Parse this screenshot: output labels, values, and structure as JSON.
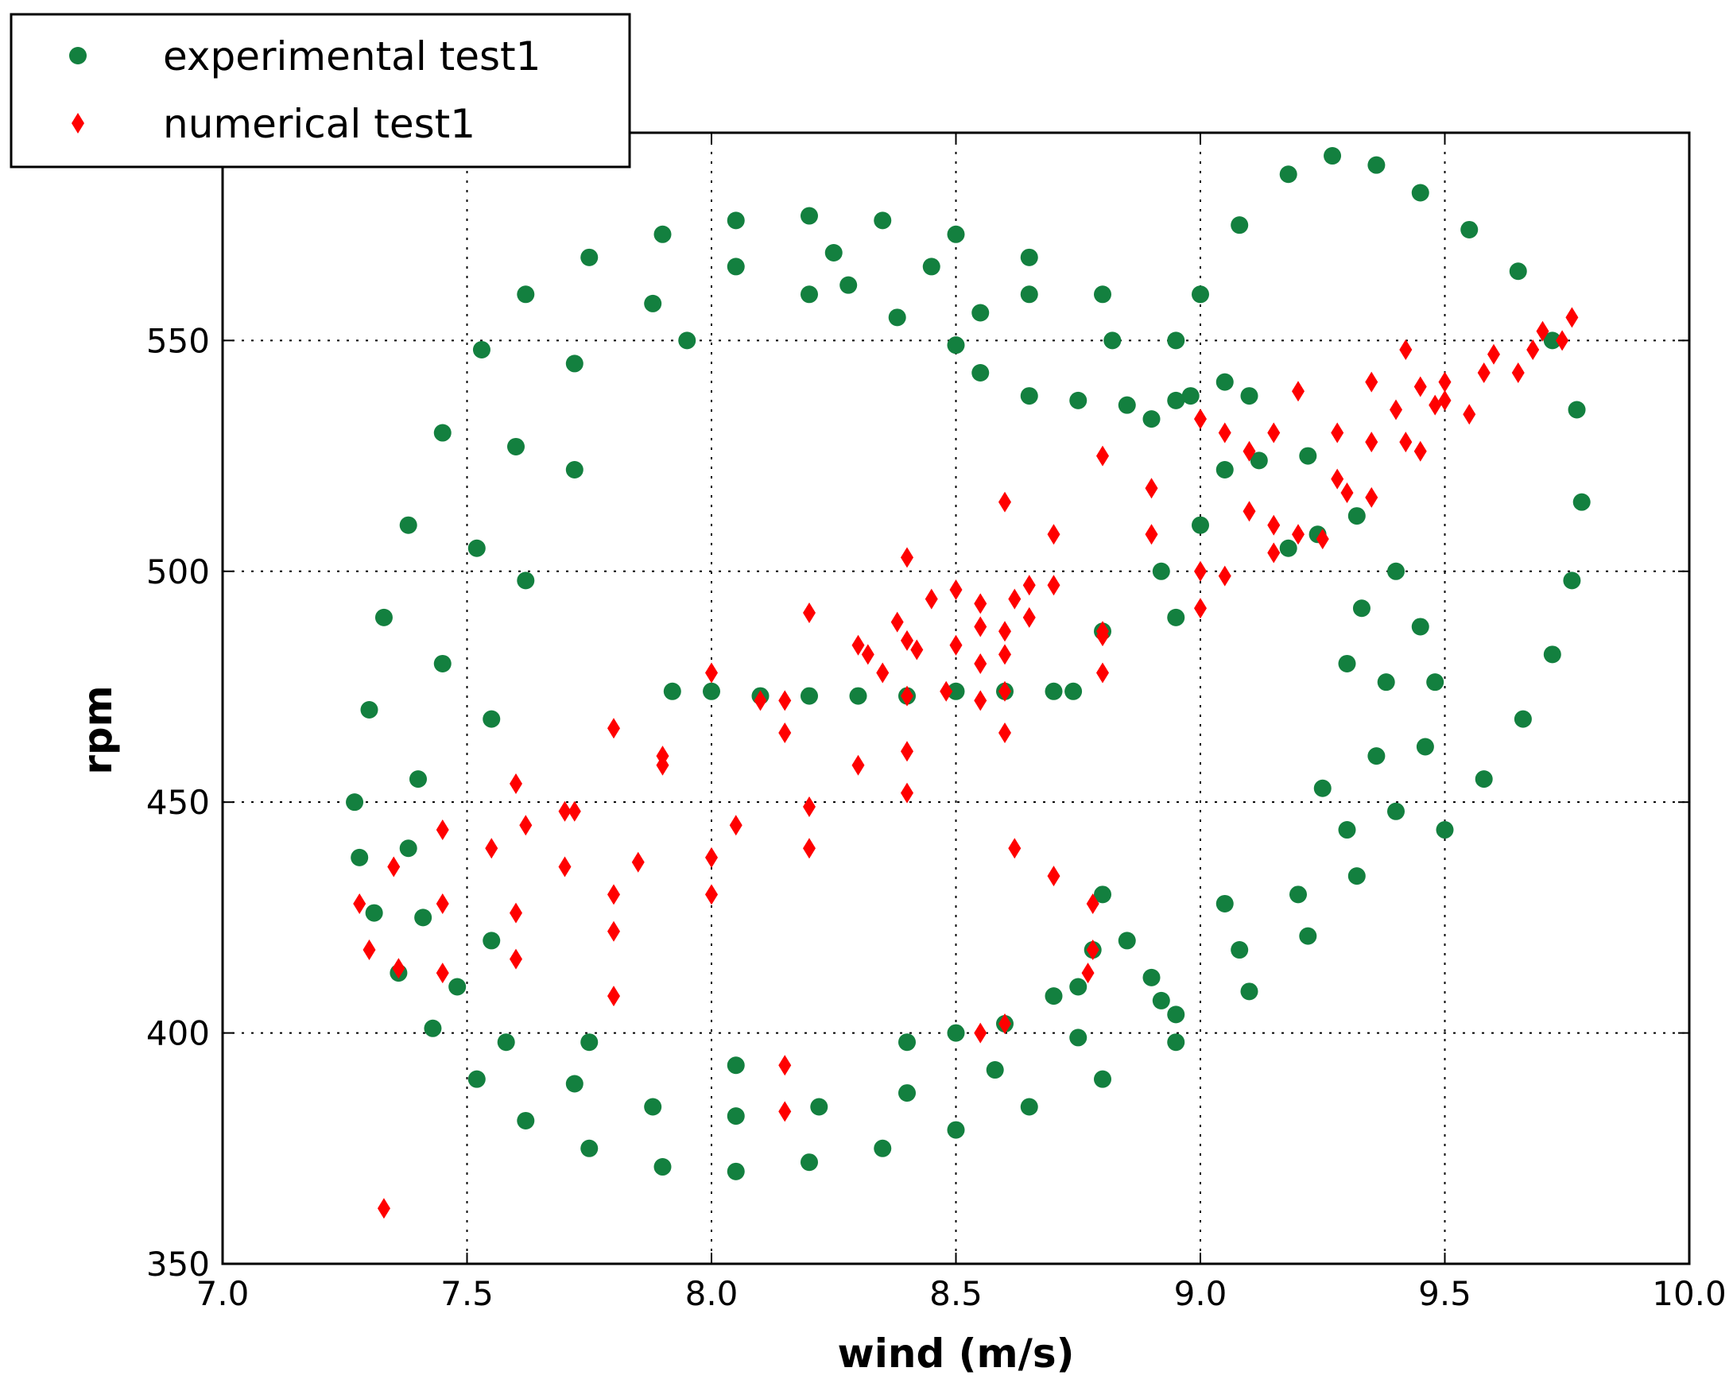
{
  "chart_data": {
    "type": "scatter",
    "title": "",
    "xlabel": "wind (m/s)",
    "ylabel": "rpm",
    "xlim": [
      7.0,
      10.0
    ],
    "ylim": [
      350,
      595
    ],
    "xticks": [
      7.0,
      7.5,
      8.0,
      8.5,
      9.0,
      9.5,
      10.0
    ],
    "xtick_labels": [
      "7.0",
      "7.5",
      "8.0",
      "8.5",
      "9.0",
      "9.5",
      "10.0"
    ],
    "yticks": [
      350,
      400,
      450,
      500,
      550
    ],
    "ytick_labels": [
      "350",
      "400",
      "450",
      "500",
      "550"
    ],
    "grid": true,
    "legend_position": "top-left (outside plot)",
    "series": [
      {
        "name": "experimental test1",
        "color": "#13803f",
        "marker": "circle",
        "description": "Ring of points around an ellipse centred near (8.4, 472) spanning x 7.25–9.45 and rpm 370–577, plus a near-horizontal band at rpm ≈ 474 between x 7.9 and 8.75 and an outer excursion loop reaching (9.27, 590) and (9.75, 555).",
        "points": [
          [
            7.27,
            450
          ],
          [
            7.3,
            470
          ],
          [
            7.33,
            490
          ],
          [
            7.38,
            510
          ],
          [
            7.45,
            530
          ],
          [
            7.53,
            548
          ],
          [
            7.62,
            560
          ],
          [
            7.75,
            568
          ],
          [
            7.9,
            573
          ],
          [
            8.05,
            576
          ],
          [
            8.2,
            577
          ],
          [
            8.35,
            576
          ],
          [
            8.5,
            573
          ],
          [
            8.65,
            568
          ],
          [
            8.8,
            560
          ],
          [
            8.95,
            550
          ],
          [
            9.1,
            538
          ],
          [
            9.22,
            525
          ],
          [
            9.32,
            512
          ],
          [
            9.4,
            500
          ],
          [
            9.45,
            488
          ],
          [
            9.48,
            476
          ],
          [
            9.46,
            462
          ],
          [
            9.4,
            448
          ],
          [
            9.32,
            434
          ],
          [
            9.22,
            421
          ],
          [
            9.1,
            409
          ],
          [
            8.95,
            398
          ],
          [
            8.8,
            390
          ],
          [
            8.65,
            384
          ],
          [
            8.5,
            379
          ],
          [
            8.35,
            375
          ],
          [
            8.2,
            372
          ],
          [
            8.05,
            370
          ],
          [
            7.9,
            371
          ],
          [
            7.75,
            375
          ],
          [
            7.62,
            381
          ],
          [
            7.52,
            390
          ],
          [
            7.43,
            401
          ],
          [
            7.36,
            413
          ],
          [
            7.31,
            426
          ],
          [
            7.28,
            438
          ],
          [
            7.4,
            455
          ],
          [
            7.45,
            480
          ],
          [
            7.52,
            505
          ],
          [
            7.6,
            527
          ],
          [
            7.72,
            545
          ],
          [
            7.88,
            558
          ],
          [
            8.05,
            566
          ],
          [
            8.25,
            569
          ],
          [
            8.45,
            566
          ],
          [
            8.65,
            560
          ],
          [
            8.82,
            550
          ],
          [
            8.98,
            538
          ],
          [
            9.12,
            524
          ],
          [
            9.24,
            508
          ],
          [
            9.33,
            492
          ],
          [
            9.38,
            476
          ],
          [
            9.36,
            460
          ],
          [
            9.3,
            444
          ],
          [
            9.2,
            430
          ],
          [
            9.08,
            418
          ],
          [
            8.92,
            407
          ],
          [
            8.75,
            399
          ],
          [
            8.58,
            392
          ],
          [
            8.4,
            387
          ],
          [
            8.22,
            384
          ],
          [
            8.05,
            382
          ],
          [
            7.88,
            384
          ],
          [
            7.72,
            389
          ],
          [
            7.58,
            398
          ],
          [
            7.48,
            410
          ],
          [
            7.41,
            425
          ],
          [
            7.38,
            440
          ],
          [
            7.55,
            468
          ],
          [
            7.62,
            498
          ],
          [
            7.72,
            522
          ],
          [
            7.95,
            550
          ],
          [
            8.2,
            560
          ],
          [
            8.55,
            556
          ],
          [
            8.9,
            533
          ],
          [
            9.18,
            505
          ],
          [
            9.3,
            480
          ],
          [
            9.25,
            453
          ],
          [
            9.05,
            428
          ],
          [
            8.75,
            410
          ],
          [
            8.4,
            398
          ],
          [
            8.05,
            393
          ],
          [
            7.75,
            398
          ],
          [
            7.55,
            420
          ],
          [
            7.92,
            474
          ],
          [
            8.0,
            474
          ],
          [
            8.1,
            473
          ],
          [
            8.2,
            473
          ],
          [
            8.3,
            473
          ],
          [
            8.4,
            473
          ],
          [
            8.5,
            474
          ],
          [
            8.6,
            474
          ],
          [
            8.7,
            474
          ],
          [
            8.74,
            474
          ],
          [
            8.28,
            562
          ],
          [
            8.38,
            555
          ],
          [
            8.5,
            549
          ],
          [
            8.55,
            543
          ],
          [
            8.65,
            538
          ],
          [
            8.75,
            537
          ],
          [
            8.85,
            536
          ],
          [
            8.95,
            537
          ],
          [
            9.05,
            541
          ],
          [
            8.92,
            500
          ],
          [
            8.95,
            490
          ],
          [
            8.8,
            487
          ],
          [
            9.0,
            510
          ],
          [
            9.05,
            522
          ],
          [
            9.0,
            560
          ],
          [
            9.08,
            575
          ],
          [
            9.18,
            586
          ],
          [
            9.27,
            590
          ],
          [
            9.36,
            588
          ],
          [
            9.45,
            582
          ],
          [
            9.55,
            574
          ],
          [
            9.65,
            565
          ],
          [
            9.72,
            550
          ],
          [
            9.77,
            535
          ],
          [
            9.78,
            515
          ],
          [
            9.76,
            498
          ],
          [
            9.72,
            482
          ],
          [
            9.66,
            468
          ],
          [
            9.58,
            455
          ],
          [
            9.5,
            444
          ],
          [
            8.8,
            430
          ],
          [
            8.85,
            420
          ],
          [
            8.9,
            412
          ],
          [
            8.95,
            404
          ],
          [
            8.6,
            402
          ],
          [
            8.5,
            400
          ],
          [
            8.7,
            408
          ],
          [
            8.78,
            418
          ]
        ]
      },
      {
        "name": "numerical test1",
        "color": "#ff0000",
        "marker": "diamond",
        "description": "Tilted elliptical band from (7.3, 415) to (9.76, 557) with an inner spiral core near (8.5, 485) and scattered outliers.",
        "points": [
          [
            7.28,
            428
          ],
          [
            7.3,
            418
          ],
          [
            7.36,
            414
          ],
          [
            7.45,
            413
          ],
          [
            7.6,
            416
          ],
          [
            7.8,
            422
          ],
          [
            8.0,
            430
          ],
          [
            8.2,
            440
          ],
          [
            8.4,
            452
          ],
          [
            8.6,
            465
          ],
          [
            8.8,
            478
          ],
          [
            9.0,
            492
          ],
          [
            9.15,
            504
          ],
          [
            9.3,
            517
          ],
          [
            9.42,
            528
          ],
          [
            9.48,
            536
          ],
          [
            9.45,
            540
          ],
          [
            9.35,
            541
          ],
          [
            9.2,
            539
          ],
          [
            9.0,
            533
          ],
          [
            8.8,
            525
          ],
          [
            8.6,
            515
          ],
          [
            8.4,
            503
          ],
          [
            8.2,
            491
          ],
          [
            8.0,
            478
          ],
          [
            7.8,
            466
          ],
          [
            7.6,
            454
          ],
          [
            7.45,
            444
          ],
          [
            7.35,
            436
          ],
          [
            7.45,
            428
          ],
          [
            7.6,
            426
          ],
          [
            7.8,
            430
          ],
          [
            8.0,
            438
          ],
          [
            8.2,
            449
          ],
          [
            8.4,
            461
          ],
          [
            8.6,
            474
          ],
          [
            8.8,
            487
          ],
          [
            9.0,
            500
          ],
          [
            9.15,
            510
          ],
          [
            9.28,
            520
          ],
          [
            9.35,
            528
          ],
          [
            9.28,
            530
          ],
          [
            9.1,
            526
          ],
          [
            8.9,
            518
          ],
          [
            8.7,
            508
          ],
          [
            8.5,
            496
          ],
          [
            8.3,
            484
          ],
          [
            8.1,
            472
          ],
          [
            7.9,
            460
          ],
          [
            7.7,
            448
          ],
          [
            7.55,
            440
          ],
          [
            7.62,
            445
          ],
          [
            7.7,
            436
          ],
          [
            7.85,
            437
          ],
          [
            8.05,
            445
          ],
          [
            8.3,
            458
          ],
          [
            8.55,
            472
          ],
          [
            8.8,
            486
          ],
          [
            9.05,
            499
          ],
          [
            9.2,
            508
          ],
          [
            9.1,
            513
          ],
          [
            8.9,
            508
          ],
          [
            8.65,
            497
          ],
          [
            8.4,
            485
          ],
          [
            8.15,
            472
          ],
          [
            7.9,
            458
          ],
          [
            7.72,
            448
          ],
          [
            8.35,
            478
          ],
          [
            8.4,
            473
          ],
          [
            8.48,
            474
          ],
          [
            8.55,
            480
          ],
          [
            8.6,
            487
          ],
          [
            8.55,
            493
          ],
          [
            8.45,
            494
          ],
          [
            8.38,
            489
          ],
          [
            8.42,
            483
          ],
          [
            8.5,
            484
          ],
          [
            8.55,
            488
          ],
          [
            8.62,
            494
          ],
          [
            8.7,
            497
          ],
          [
            8.32,
            482
          ],
          [
            8.6,
            482
          ],
          [
            8.65,
            490
          ],
          [
            9.4,
            535
          ],
          [
            9.5,
            541
          ],
          [
            9.6,
            547
          ],
          [
            9.7,
            552
          ],
          [
            9.76,
            555
          ],
          [
            9.74,
            550
          ],
          [
            9.65,
            543
          ],
          [
            9.55,
            534
          ],
          [
            9.45,
            526
          ],
          [
            9.35,
            516
          ],
          [
            9.25,
            507
          ],
          [
            9.42,
            548
          ],
          [
            9.58,
            543
          ],
          [
            9.68,
            548
          ],
          [
            9.5,
            537
          ],
          [
            7.33,
            362
          ],
          [
            7.8,
            408
          ],
          [
            8.15,
            393
          ],
          [
            8.15,
            383
          ],
          [
            8.15,
            465
          ],
          [
            8.55,
            400
          ],
          [
            8.6,
            402
          ],
          [
            8.62,
            440
          ],
          [
            8.7,
            434
          ],
          [
            8.78,
            428
          ],
          [
            8.78,
            418
          ],
          [
            8.77,
            413
          ],
          [
            9.05,
            530
          ],
          [
            9.15,
            530
          ]
        ]
      }
    ]
  },
  "legend": {
    "items": [
      {
        "label": "experimental test1",
        "color": "#13803f",
        "marker": "circle"
      },
      {
        "label": "numerical test1",
        "color": "#ff0000",
        "marker": "diamond"
      }
    ]
  }
}
